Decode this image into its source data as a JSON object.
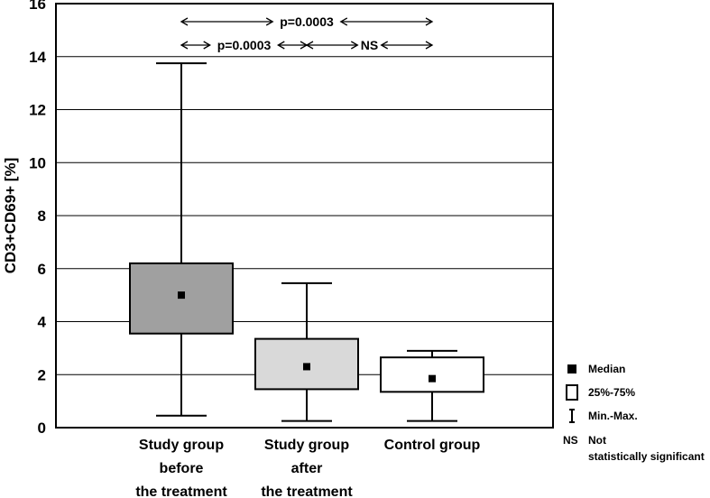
{
  "chart_data": {
    "type": "box",
    "ylabel": "CD3+CD69+ [%]",
    "ylim": [
      0,
      16
    ],
    "yticks": [
      "0",
      "2",
      "4",
      "6",
      "8",
      "10",
      "12",
      "14",
      "16"
    ],
    "grid": true,
    "categories": [
      [
        "Study group",
        "before",
        "the treatment"
      ],
      [
        "Study group",
        "after",
        "the treatment"
      ],
      [
        "Control group"
      ]
    ],
    "boxes": [
      {
        "min": 0.45,
        "q1": 3.55,
        "median": 5.0,
        "q3": 6.2,
        "max": 13.75,
        "fill": "#a0a0a0"
      },
      {
        "min": 0.25,
        "q1": 1.45,
        "median": 2.3,
        "q3": 3.35,
        "max": 5.45,
        "fill": "#d9d9d9"
      },
      {
        "min": 0.25,
        "q1": 1.35,
        "median": 1.85,
        "q3": 2.65,
        "max": 2.9,
        "fill": "#ffffff"
      }
    ],
    "annotations": [
      {
        "label": "p=0.0003",
        "from": 0,
        "to": 2,
        "row": 1
      },
      {
        "label": "p=0.0003",
        "from": 0,
        "to": 1,
        "row": 2
      },
      {
        "label": "NS",
        "from": 1,
        "to": 2,
        "row": 2
      }
    ],
    "legend": {
      "placement": "bottom-right",
      "items": [
        {
          "symbol": "square",
          "label": [
            "Median"
          ]
        },
        {
          "symbol": "box",
          "label": [
            "25%-75%"
          ]
        },
        {
          "symbol": "whisker",
          "label": [
            "Min.-Max."
          ]
        },
        {
          "symbol": "NS",
          "label": [
            "Not",
            "statistically significant"
          ]
        }
      ]
    }
  }
}
